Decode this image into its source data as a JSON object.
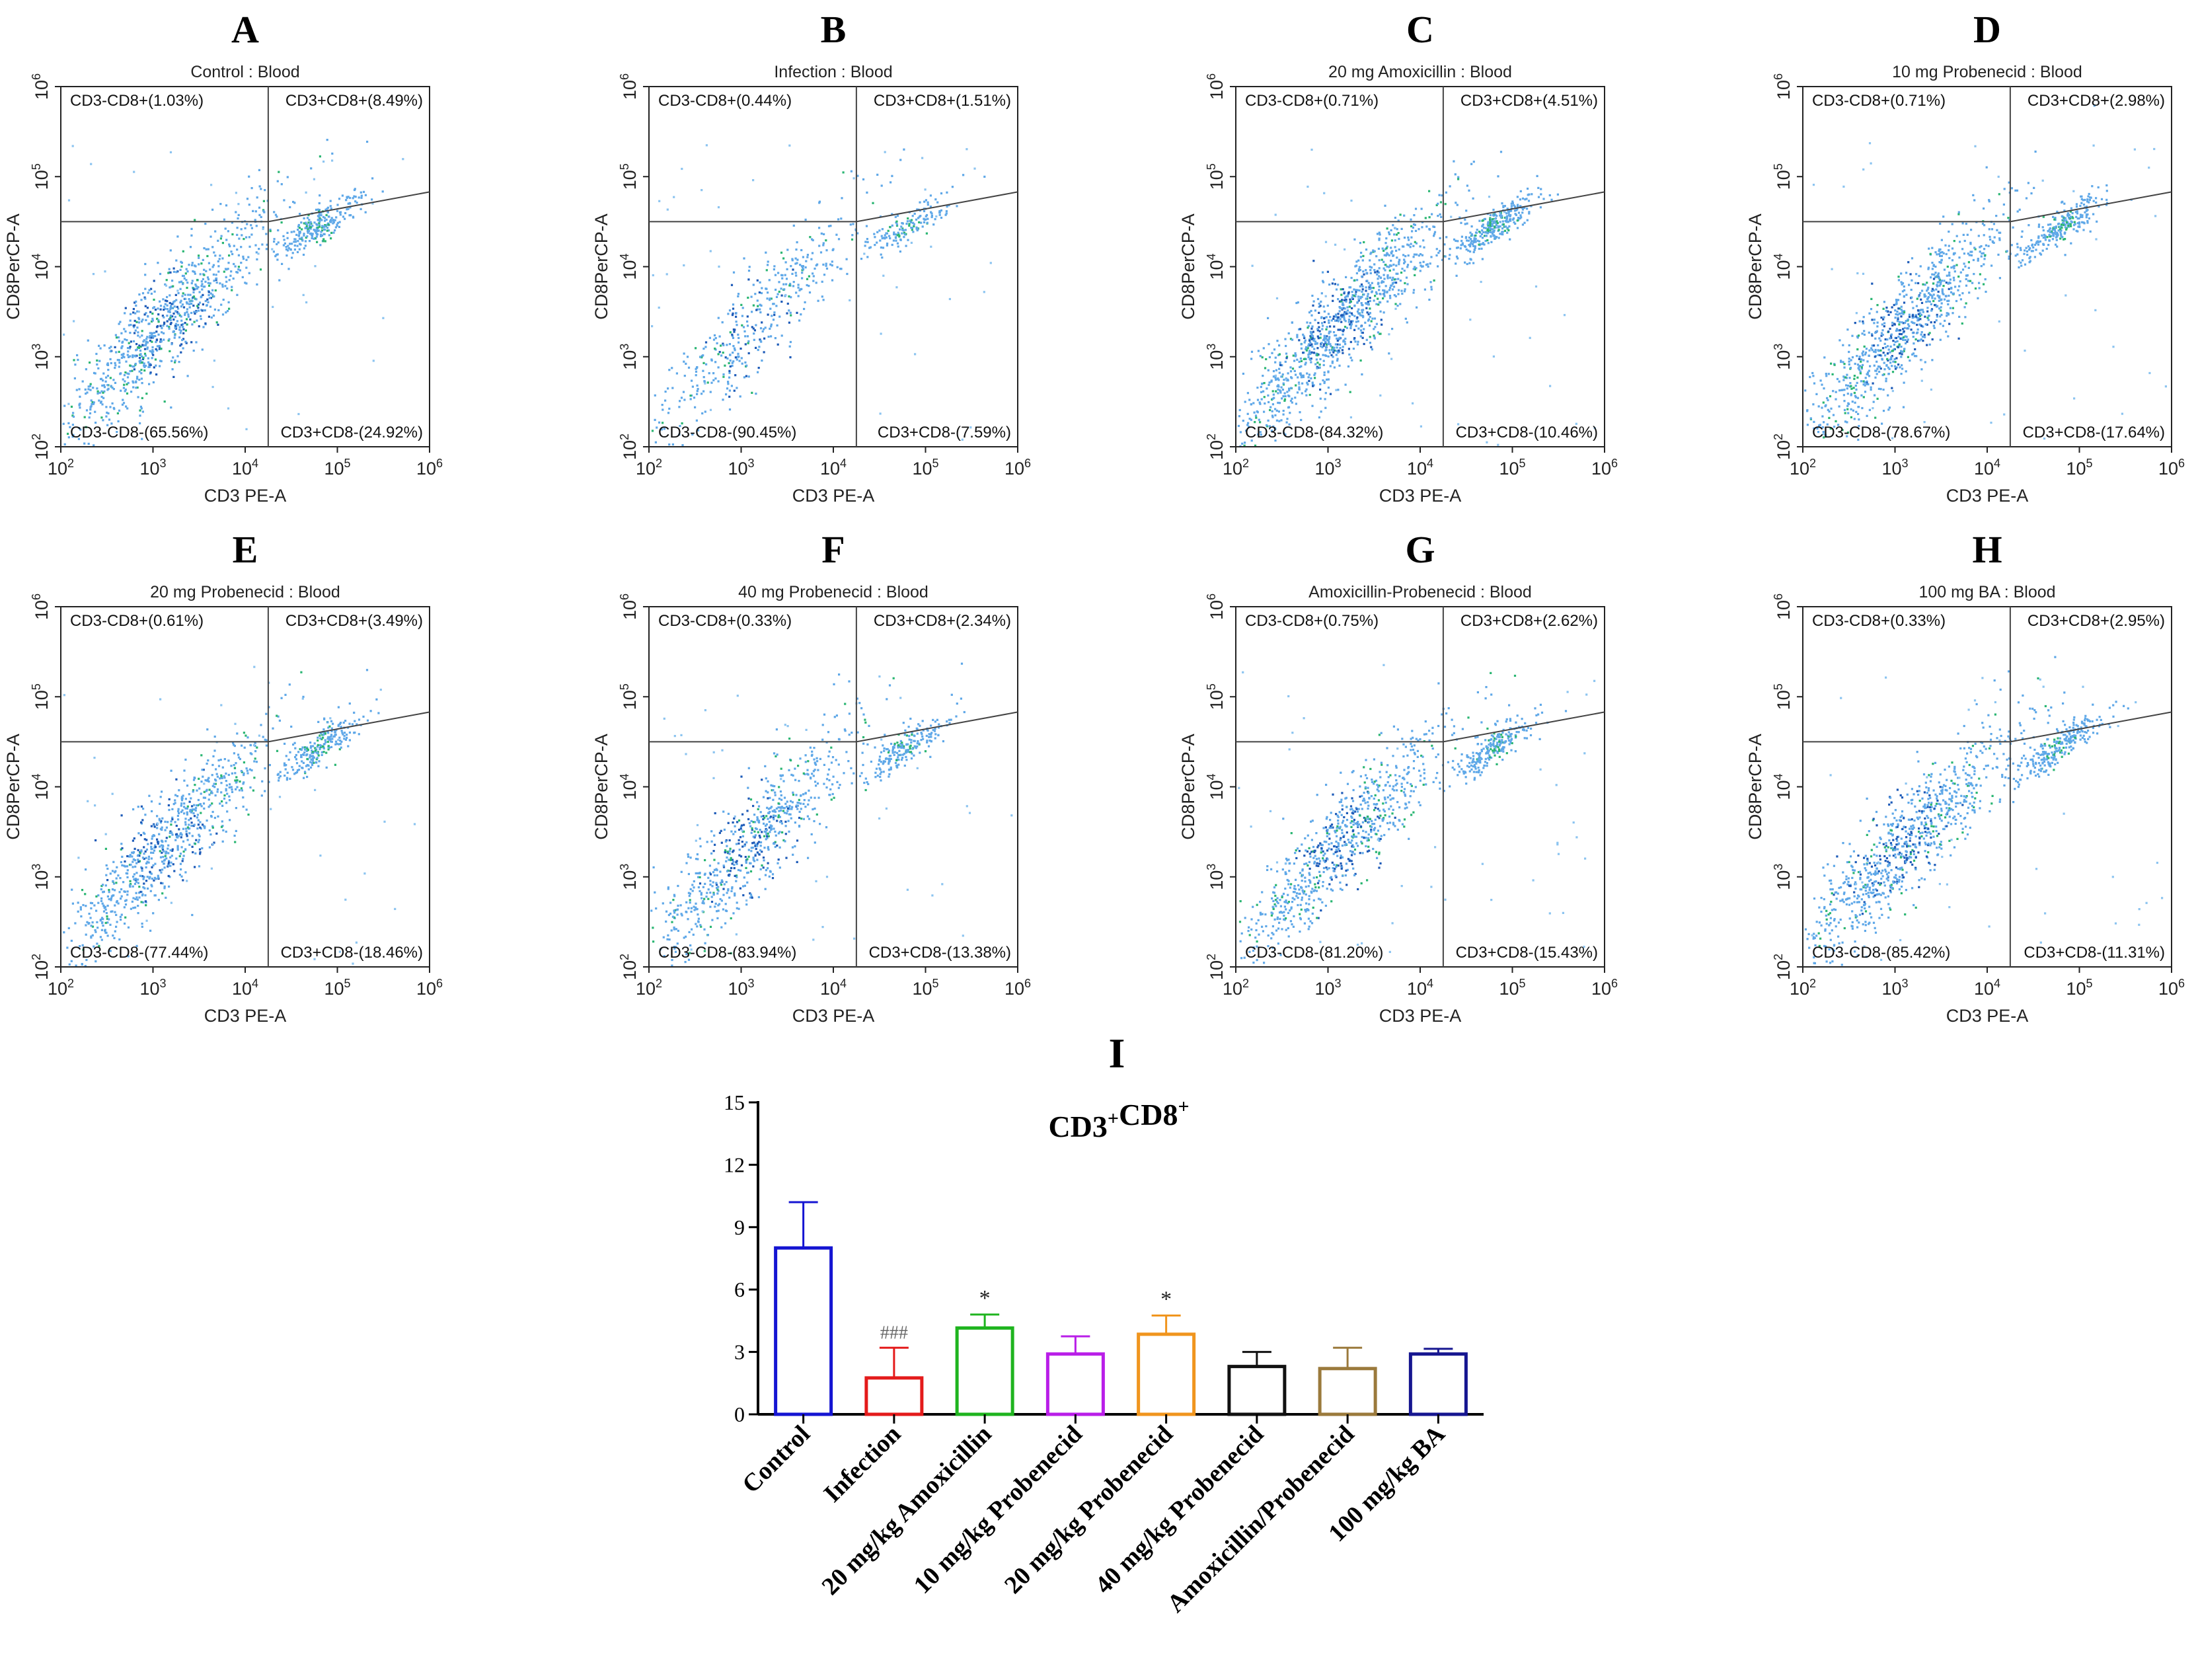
{
  "chart_data": [
    {
      "type": "scatter",
      "panel_letter": "A",
      "title": "Control : Blood",
      "xlabel": "CD3 PE-A",
      "ylabel": "CD8PerCP-A",
      "scale": "log",
      "xlim": [
        100,
        1000000
      ],
      "ylim": [
        100,
        1000000
      ],
      "tick_exponents": [
        2,
        3,
        4,
        5,
        6
      ],
      "quadrants": {
        "top_left": "CD3-CD8+(1.03%)",
        "top_right": "CD3+CD8+(8.49%)",
        "bottom_left": "CD3-CD8-(65.56%)",
        "bottom_right": "CD3+CD8-(24.92%)"
      },
      "cluster_density": 1.0
    },
    {
      "type": "scatter",
      "panel_letter": "B",
      "title": "Infection : Blood",
      "xlabel": "CD3 PE-A",
      "ylabel": "CD8PerCP-A",
      "scale": "log",
      "xlim": [
        100,
        1000000
      ],
      "ylim": [
        100,
        1000000
      ],
      "tick_exponents": [
        2,
        3,
        4,
        5,
        6
      ],
      "quadrants": {
        "top_left": "CD3-CD8+(0.44%)",
        "top_right": "CD3+CD8+(1.51%)",
        "bottom_left": "CD3-CD8-(90.45%)",
        "bottom_right": "CD3+CD8-(7.59%)"
      },
      "cluster_density": 0.5
    },
    {
      "type": "scatter",
      "panel_letter": "C",
      "title": "20 mg Amoxicillin : Blood",
      "xlabel": "CD3 PE-A",
      "ylabel": "CD8PerCP-A",
      "scale": "log",
      "xlim": [
        100,
        1000000
      ],
      "ylim": [
        100,
        1000000
      ],
      "tick_exponents": [
        2,
        3,
        4,
        5,
        6
      ],
      "quadrants": {
        "top_left": "CD3-CD8+(0.71%)",
        "top_right": "CD3+CD8+(4.51%)",
        "bottom_left": "CD3-CD8-(84.32%)",
        "bottom_right": "CD3+CD8-(10.46%)"
      },
      "cluster_density": 1.2
    },
    {
      "type": "scatter",
      "panel_letter": "D",
      "title": "10 mg Probenecid : Blood",
      "xlabel": "CD3 PE-A",
      "ylabel": "CD8PerCP-A",
      "scale": "log",
      "xlim": [
        100,
        1000000
      ],
      "ylim": [
        100,
        1000000
      ],
      "tick_exponents": [
        2,
        3,
        4,
        5,
        6
      ],
      "quadrants": {
        "top_left": "CD3-CD8+(0.71%)",
        "top_right": "CD3+CD8+(2.98%)",
        "bottom_left": "CD3-CD8-(78.67%)",
        "bottom_right": "CD3+CD8-(17.64%)"
      },
      "cluster_density": 1.0
    },
    {
      "type": "scatter",
      "panel_letter": "E",
      "title": "20 mg Probenecid : Blood",
      "xlabel": "CD3 PE-A",
      "ylabel": "CD8PerCP-A",
      "scale": "log",
      "xlim": [
        100,
        1000000
      ],
      "ylim": [
        100,
        1000000
      ],
      "tick_exponents": [
        2,
        3,
        4,
        5,
        6
      ],
      "quadrants": {
        "top_left": "CD3-CD8+(0.61%)",
        "top_right": "CD3+CD8+(3.49%)",
        "bottom_left": "CD3-CD8-(77.44%)",
        "bottom_right": "CD3+CD8-(18.46%)"
      },
      "cluster_density": 0.9
    },
    {
      "type": "scatter",
      "panel_letter": "F",
      "title": "40 mg Probenecid : Blood",
      "xlabel": "CD3 PE-A",
      "ylabel": "CD8PerCP-A",
      "scale": "log",
      "xlim": [
        100,
        1000000
      ],
      "ylim": [
        100,
        1000000
      ],
      "tick_exponents": [
        2,
        3,
        4,
        5,
        6
      ],
      "quadrants": {
        "top_left": "CD3-CD8+(0.33%)",
        "top_right": "CD3+CD8+(2.34%)",
        "bottom_left": "CD3-CD8-(83.94%)",
        "bottom_right": "CD3+CD8-(13.38%)"
      },
      "cluster_density": 0.8
    },
    {
      "type": "scatter",
      "panel_letter": "G",
      "title": "Amoxicillin-Probenecid : Blood",
      "xlabel": "CD3 PE-A",
      "ylabel": "CD8PerCP-A",
      "scale": "log",
      "xlim": [
        100,
        1000000
      ],
      "ylim": [
        100,
        1000000
      ],
      "tick_exponents": [
        2,
        3,
        4,
        5,
        6
      ],
      "quadrants": {
        "top_left": "CD3-CD8+(0.75%)",
        "top_right": "CD3+CD8+(2.62%)",
        "bottom_left": "CD3-CD8-(81.20%)",
        "bottom_right": "CD3+CD8-(15.43%)"
      },
      "cluster_density": 0.9
    },
    {
      "type": "scatter",
      "panel_letter": "H",
      "title": "100 mg BA : Blood",
      "xlabel": "CD3 PE-A",
      "ylabel": "CD8PerCP-A",
      "scale": "log",
      "xlim": [
        100,
        1000000
      ],
      "ylim": [
        100,
        1000000
      ],
      "tick_exponents": [
        2,
        3,
        4,
        5,
        6
      ],
      "quadrants": {
        "top_left": "CD3-CD8+(0.33%)",
        "top_right": "CD3+CD8+(2.95%)",
        "bottom_left": "CD3-CD8-(85.42%)",
        "bottom_right": "CD3+CD8-(11.31%)"
      },
      "cluster_density": 1.0
    },
    {
      "type": "bar",
      "panel_letter": "I",
      "title": "CD3+CD8+",
      "ylim": [
        0,
        15
      ],
      "yticks": [
        0,
        3,
        6,
        9,
        12,
        15
      ],
      "categories": [
        "Control",
        "Infection",
        "20 mg/kg Amoxicillin",
        "10 mg/kg Probenecid",
        "20 mg/kg Probenecid",
        "40 mg/kg Probenecid",
        "Amoxicillin/Probenecid",
        "100 mg/kg BA"
      ],
      "values": [
        8.0,
        1.75,
        4.15,
        2.9,
        3.85,
        2.3,
        2.2,
        2.9
      ],
      "errors": [
        2.2,
        1.45,
        0.65,
        0.85,
        0.9,
        0.7,
        1.0,
        0.25
      ],
      "annotations": [
        "",
        "###",
        "*",
        "",
        "*",
        "",
        "",
        ""
      ],
      "colors": [
        "#1515d2",
        "#e41b1b",
        "#1fb41f",
        "#b91ee8",
        "#f0951e",
        "#111111",
        "#9b7a3c",
        "#161690"
      ]
    }
  ]
}
